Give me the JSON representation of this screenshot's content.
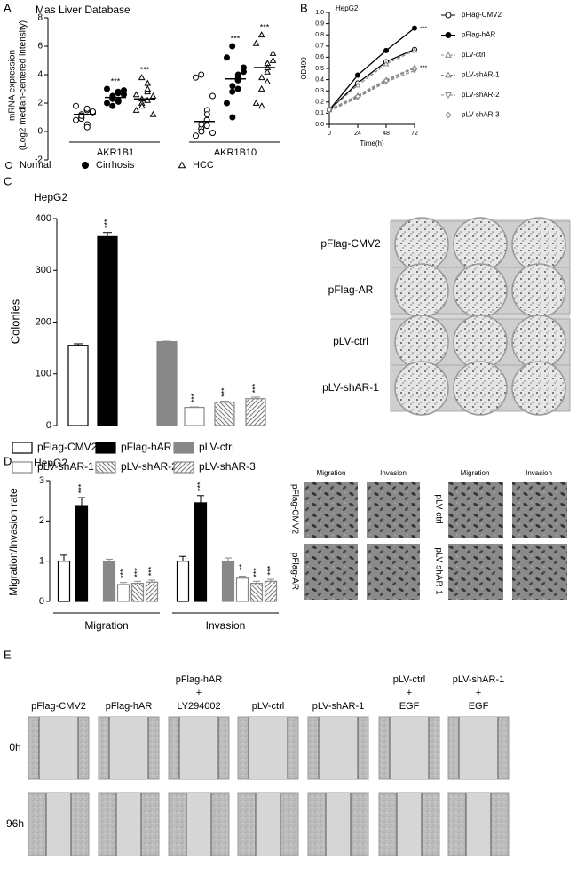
{
  "panels": [
    "A",
    "B",
    "C",
    "D",
    "E"
  ],
  "chart_data": [
    {
      "type": "dot",
      "title": "Mas Liver Database",
      "ylabel": [
        "mRNA expression",
        "(Log2 median-centered intensity)"
      ],
      "categories": [
        "AKR1B1",
        "AKR1B10"
      ],
      "ylim": [
        -2,
        8
      ],
      "yticks": [
        -2,
        0,
        2,
        4,
        6,
        8
      ],
      "series": [
        {
          "name": "Normal",
          "marker": "circle-open",
          "color": "#000000",
          "points": [
            [
              0.8,
              1.0,
              1.2,
              1.5,
              0.5,
              1.3,
              1.8,
              0.9,
              1.1,
              1.6,
              0.3,
              1.4
            ],
            [
              -0.3,
              0.2,
              0.5,
              0.8,
              1.5,
              2.5,
              3.8,
              4.0,
              0.0,
              0.4,
              1.2,
              -0.1
            ]
          ],
          "means": [
            1.2,
            0.7
          ]
        },
        {
          "name": "Cirrhosis",
          "marker": "circle-filled",
          "color": "#000000",
          "points": [
            [
              2.0,
              2.3,
              2.5,
              2.8,
              2.2,
              2.6,
              3.0,
              1.8,
              2.4,
              2.7,
              2.1,
              2.9
            ],
            [
              2.0,
              2.8,
              3.2,
              3.6,
              4.0,
              4.5,
              5.2,
              6.0,
              1.0,
              3.0,
              3.8,
              4.2
            ]
          ],
          "means": [
            2.4,
            3.7
          ],
          "annotations": [
            "***",
            "***"
          ]
        },
        {
          "name": "HCC",
          "marker": "triangle-open",
          "color": "#000000",
          "points": [
            [
              1.5,
              2.0,
              2.3,
              2.8,
              3.4,
              1.2,
              2.6,
              3.8,
              1.8,
              2.2,
              3.0,
              2.5
            ],
            [
              2.0,
              3.0,
              3.8,
              4.2,
              4.8,
              5.5,
              6.2,
              6.8,
              1.8,
              3.5,
              4.5,
              5.0
            ]
          ],
          "means": [
            2.3,
            4.5
          ],
          "annotations": [
            "***",
            "***"
          ]
        }
      ]
    },
    {
      "type": "line",
      "title": "HepG2",
      "xlabel": "Time(h)",
      "ylabel": "OD490",
      "x": [
        0,
        24,
        48,
        72
      ],
      "xlim": [
        0,
        72
      ],
      "xticks": [
        0,
        24,
        48,
        72
      ],
      "ylim": [
        0,
        1
      ],
      "yticks": [
        {
          "value": 0,
          "label": "0.0"
        },
        0.1,
        0.2,
        0.3,
        0.4,
        0.5,
        0.6,
        0.7,
        0.8,
        0.9,
        {
          "value": 1,
          "label": "1.0"
        }
      ],
      "series": [
        {
          "name": "pFlag-CMV2",
          "marker": "circle-open",
          "color": "#000000",
          "dashed": false,
          "values": [
            0.13,
            0.37,
            0.56,
            0.67
          ]
        },
        {
          "name": "pFlag-hAR",
          "marker": "circle-filled",
          "color": "#000000",
          "dashed": false,
          "values": [
            0.13,
            0.44,
            0.66,
            0.86
          ],
          "annotation": "***"
        },
        {
          "name": "pLV-ctrl",
          "marker": "triangle-up-open",
          "color": "#888888",
          "dashed": true,
          "values": [
            0.13,
            0.35,
            0.54,
            0.66
          ]
        },
        {
          "name": "pLV-shAR-1",
          "marker": "triangle-up-open",
          "color": "#888888",
          "dashed": true,
          "values": [
            0.13,
            0.26,
            0.4,
            0.51
          ],
          "annotation": "***"
        },
        {
          "name": "pLV-shAR-2",
          "marker": "triangle-down-open",
          "color": "#888888",
          "dashed": true,
          "values": [
            0.12,
            0.24,
            0.38,
            0.48
          ]
        },
        {
          "name": "pLV-shAR-3",
          "marker": "diamond-open",
          "color": "#888888",
          "dashed": true,
          "values": [
            0.13,
            0.25,
            0.39,
            0.5
          ]
        }
      ]
    },
    {
      "type": "bar",
      "title": "HepG2",
      "ylabel": "Colonies",
      "ylim": [
        0,
        400
      ],
      "yticks": [
        0,
        100,
        200,
        300,
        400
      ],
      "series": [
        {
          "name": "pFlag-CMV2",
          "fill": "#ffffff",
          "color": "#000000",
          "values": [
            155
          ],
          "errors": [
            3
          ]
        },
        {
          "name": "pFlag-hAR",
          "fill": "#000000",
          "color": "#000000",
          "values": [
            365
          ],
          "errors": [
            8
          ],
          "annotations": [
            "***"
          ]
        },
        {
          "name": "pLV-ctrl",
          "fill": "#888888",
          "color": "#888888",
          "values": [
            162
          ],
          "errors": [
            1
          ]
        },
        {
          "name": "pLV-shAR-1",
          "fill": "#ffffff",
          "color": "#888888",
          "values": [
            35
          ],
          "errors": [
            1
          ],
          "annotations": [
            "***"
          ]
        },
        {
          "name": "pLV-shAR-2",
          "fill": "#ffffff",
          "pattern": "hatch-left",
          "color": "#888888",
          "values": [
            45
          ],
          "errors": [
            2
          ],
          "annotations": [
            "***"
          ]
        },
        {
          "name": "pLV-shAR-3",
          "fill": "#ffffff",
          "pattern": "hatch-right",
          "color": "#888888",
          "values": [
            52
          ],
          "errors": [
            3
          ],
          "annotations": [
            "***"
          ]
        }
      ]
    },
    {
      "type": "grouped-bar",
      "title": "HepG2",
      "ylabel": "Migration/Invasion rate",
      "categories": [
        "Migration",
        "Invasion"
      ],
      "ylim": [
        0,
        3
      ],
      "yticks": [
        0,
        1,
        2,
        3
      ],
      "series": [
        {
          "fill": "#ffffff",
          "color": "#000000",
          "values": [
            1.0,
            1.0
          ],
          "errors": [
            0.15,
            0.12
          ]
        },
        {
          "fill": "#000000",
          "color": "#000000",
          "values": [
            2.38,
            2.45
          ],
          "errors": [
            0.2,
            0.18
          ],
          "annotations": [
            "***",
            "***"
          ]
        },
        {
          "fill": "#888888",
          "color": "#888888",
          "values": [
            1.0,
            1.0
          ],
          "errors": [
            0.05,
            0.08
          ]
        },
        {
          "fill": "#ffffff",
          "color": "#888888",
          "values": [
            0.42,
            0.58
          ],
          "errors": [
            0.05,
            0.05
          ],
          "annotations": [
            "***",
            "**"
          ]
        },
        {
          "fill": "#ffffff",
          "pattern": "hatch-left",
          "color": "#888888",
          "values": [
            0.45,
            0.45
          ],
          "errors": [
            0.05,
            0.05
          ],
          "annotations": [
            "***",
            "***"
          ]
        },
        {
          "fill": "#ffffff",
          "pattern": "hatch-right",
          "color": "#888888",
          "values": [
            0.48,
            0.5
          ],
          "errors": [
            0.05,
            0.05
          ],
          "annotations": [
            "***",
            "***"
          ]
        }
      ]
    }
  ],
  "colony_images": {
    "rows": [
      "pFlag-CMV2",
      "pFlag-AR",
      "pLV-ctrl",
      "pLV-shAR-1"
    ]
  },
  "transwell_images": {
    "columns": [
      "Migration",
      "Invasion"
    ],
    "groups": [
      [
        "pFlag-CMV2",
        "pFlag-AR"
      ],
      [
        "pLV-ctrl",
        "pLV-shAR-1"
      ]
    ]
  },
  "wound_images": {
    "columns": [
      [
        "pFlag-CMV2"
      ],
      [
        "pFlag-hAR"
      ],
      [
        "pFlag-hAR",
        "+",
        "LY294002"
      ],
      [
        "pLV-ctrl"
      ],
      [
        "pLV-shAR-1"
      ],
      [
        "pLV-ctrl",
        "+",
        "EGF"
      ],
      [
        "pLV-shAR-1",
        "+",
        "EGF"
      ]
    ],
    "rows": [
      "0h",
      "96h"
    ]
  }
}
